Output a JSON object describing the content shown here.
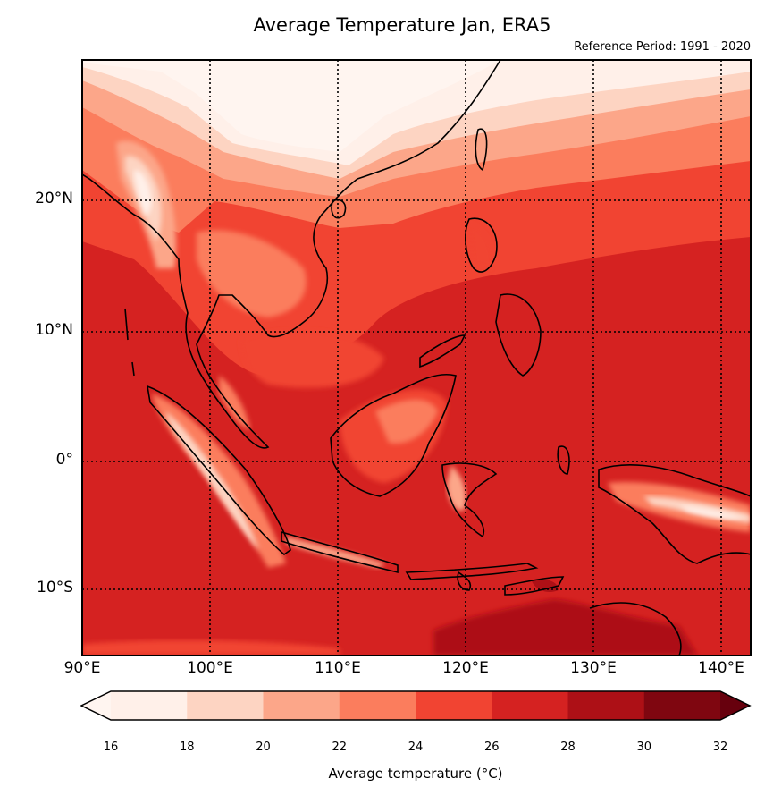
{
  "title": "Average Temperature Jan, ERA5",
  "subtitle": "Reference Period: 1991 - 2020",
  "lat_ticks": [
    "20°N",
    "10°N",
    "0°",
    "10°S"
  ],
  "lon_ticks": [
    "90°E",
    "100°E",
    "110°E",
    "120°E",
    "130°E",
    "140°E"
  ],
  "colorbar": {
    "label": "Average temperature (°C)",
    "ticks": [
      "16",
      "18",
      "20",
      "22",
      "24",
      "26",
      "28",
      "30",
      "32"
    ],
    "colors": [
      "#fff0e9",
      "#fdd4c2",
      "#fca689",
      "#fb7d5d",
      "#f14432",
      "#d52221",
      "#ad1016",
      "#7f0610"
    ],
    "under_color": "#fff5f0",
    "over_color": "#67000d"
  },
  "chart_data": {
    "type": "heatmap",
    "title": "Average Temperature Jan, ERA5",
    "subtitle": "Reference Period: 1991 - 2020",
    "xlim": [
      90,
      142.5
    ],
    "ylim": [
      -15,
      31
    ],
    "xticks": [
      90,
      100,
      110,
      120,
      130,
      140
    ],
    "yticks": [
      20,
      10,
      0,
      -10
    ],
    "colorbar_range": [
      16,
      32
    ],
    "colorbar_step": 2,
    "colorbar_label": "Average temperature (°C)",
    "grid": true
  }
}
